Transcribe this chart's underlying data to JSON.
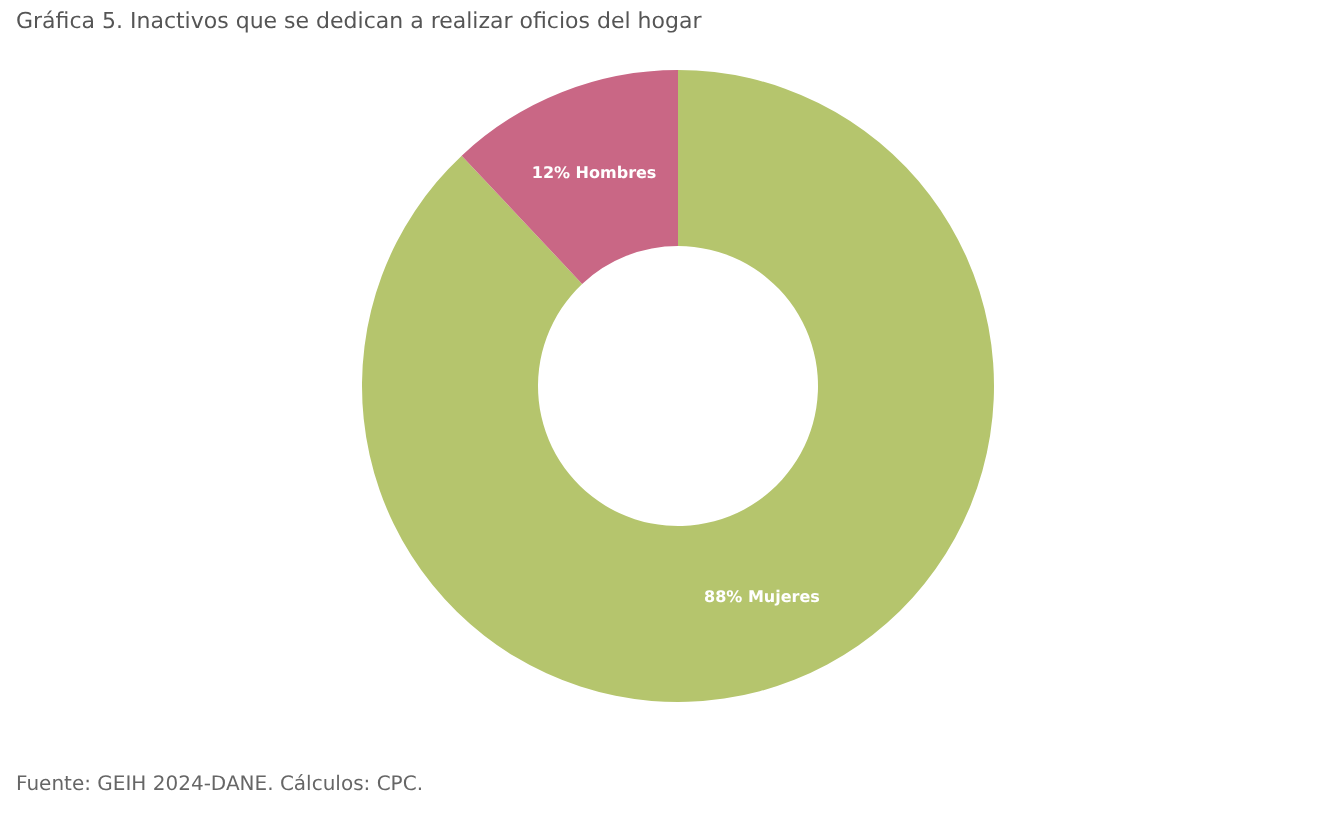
{
  "chart_data": {
    "type": "donut",
    "title": "Gráfica 5. Inactivos que se dedican a realizar oficios del hogar",
    "categories": [
      "Mujeres",
      "Hombres"
    ],
    "values": [
      88,
      12
    ],
    "colors": [
      "#b5c56d",
      "#c96785"
    ],
    "value_labels": [
      "88%",
      "12%"
    ],
    "annotations": [
      "Fuente: GEIH 2024-DANE. Cálculos: CPC."
    ]
  }
}
